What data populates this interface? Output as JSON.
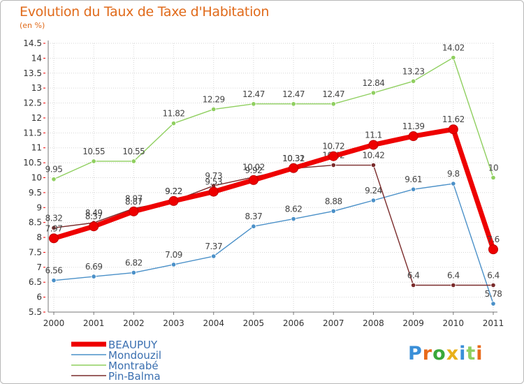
{
  "header": {
    "title": "Evolution du Taux de Taxe d'Habitation",
    "subtitle": "(en %)"
  },
  "logo": {
    "text": "Proxiti"
  },
  "chart_data": {
    "type": "line",
    "title": "Evolution du Taux de Taxe d'Habitation",
    "ylabel": "(en %)",
    "ylim": [
      5.5,
      14.5
    ],
    "yticks": [
      "5.5",
      "6",
      "6.5",
      "7",
      "7.5",
      "8",
      "8.5",
      "9",
      "9.5",
      "10",
      "10.5",
      "11",
      "11.5",
      "12",
      "12.5",
      "13",
      "13.5",
      "14",
      "14.5"
    ],
    "categories": [
      "2000",
      "2001",
      "2002",
      "2003",
      "2004",
      "2005",
      "2006",
      "2007",
      "2008",
      "2009",
      "2010",
      "2011"
    ],
    "grid": true,
    "legend_position": "bottom-left",
    "series": [
      {
        "name": "Montrabé",
        "color": "#8fcf5f",
        "values": [
          9.95,
          10.55,
          10.55,
          11.82,
          12.29,
          12.47,
          12.47,
          12.47,
          12.84,
          13.23,
          14.02,
          10
        ],
        "labels": [
          "9.95",
          "10.55",
          "10.55",
          "11.82",
          "12.29",
          "12.47",
          "12.47",
          "12.47",
          "12.84",
          "13.23",
          "14.02",
          "10"
        ]
      },
      {
        "name": "Mondouzil",
        "color": "#4a90c8",
        "values": [
          6.56,
          6.69,
          6.82,
          7.09,
          7.37,
          8.37,
          8.62,
          8.88,
          9.24,
          9.61,
          9.8,
          5.78
        ],
        "labels": [
          "6.56",
          "6.69",
          "6.82",
          "7.09",
          "7.37",
          "8.37",
          "8.62",
          "8.88",
          "9.24",
          "9.61",
          "9.8",
          "5.78"
        ]
      },
      {
        "name": "Pin-Balma",
        "color": "#7a2b2b",
        "values": [
          8.32,
          8.49,
          8.97,
          9.22,
          9.73,
          10.02,
          10.31,
          10.42,
          10.42,
          6.4,
          6.4,
          6.4
        ],
        "labels": [
          "8.32",
          "8.49",
          "8.97",
          "9.22",
          "9.73",
          "10.02",
          "10.31",
          "10.42",
          "10.42",
          "6.4",
          "6.4",
          "6.4"
        ]
      },
      {
        "name": "BEAUPUY",
        "color": "#ee0000",
        "values": [
          7.97,
          8.37,
          8.87,
          9.22,
          9.53,
          9.92,
          10.32,
          10.72,
          11.1,
          11.39,
          11.62,
          7.6
        ],
        "labels": [
          "7.97",
          "8.37",
          "8.87",
          "9.22",
          "9.53",
          "9.92",
          "10.32",
          "10.72",
          "11.1",
          "11.39",
          "11.62",
          "7.6"
        ]
      }
    ]
  }
}
